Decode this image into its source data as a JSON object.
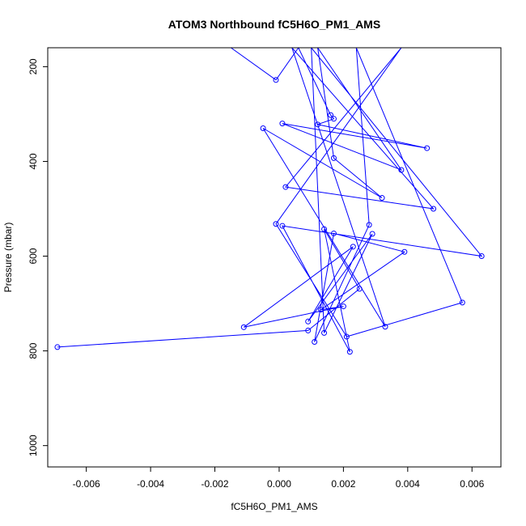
{
  "chart_data": {
    "type": "line",
    "title": "ATOM3 Northbound fC5H6O_PM1_AMS",
    "xlabel": "fC5H6O_PM1_AMS",
    "ylabel": "Pressure (mbar)",
    "xlim": [
      -0.0072,
      0.0069
    ],
    "ylim": [
      1045,
      160
    ],
    "y_reversed": true,
    "grid": false,
    "legend": "none",
    "x_ticks": [
      -0.006,
      -0.004,
      -0.002,
      0.0,
      0.002,
      0.004,
      0.006
    ],
    "x_tick_labels": [
      "-0.006",
      "-0.004",
      "-0.002",
      "0.000",
      "0.002",
      "0.004",
      "0.006"
    ],
    "y_ticks": [
      200,
      400,
      600,
      800,
      1000
    ],
    "y_tick_labels": [
      "200",
      "400",
      "600",
      "800",
      "1000"
    ],
    "series": [
      {
        "color": "#0000ff",
        "marker": "open-circle",
        "points": [
          [
            -0.0015,
            160
          ],
          [
            -0.0001,
            228
          ],
          [
            0.0006,
            160
          ],
          [
            0.0016,
            302
          ],
          [
            0.0017,
            310
          ],
          [
            0.0012,
            322
          ],
          [
            0.0046,
            372
          ],
          [
            0.0001,
            320
          ],
          [
            0.0038,
            418
          ],
          [
            0.0012,
            160
          ],
          [
            0.0017,
            393
          ],
          [
            0.0032,
            477
          ],
          [
            -0.0005,
            330
          ],
          [
            0.0033,
            749
          ],
          [
            0.0004,
            160
          ],
          [
            0.0048,
            500
          ],
          [
            0.0002,
            454
          ],
          [
            0.0038,
            160
          ],
          [
            -0.0001,
            532
          ],
          [
            0.0021,
            770
          ],
          [
            0.0057,
            698
          ],
          [
            0.0024,
            160
          ],
          [
            0.0028,
            534
          ],
          [
            0.0011,
            781
          ],
          [
            0.0017,
            552
          ],
          [
            0.0039,
            591
          ],
          [
            0.0013,
            713
          ],
          [
            0.002,
            706
          ],
          [
            -0.0011,
            750
          ],
          [
            0.0023,
            580
          ],
          [
            0.0009,
            738
          ],
          [
            0.0029,
            553
          ],
          [
            0.0014,
            762
          ],
          [
            0.001,
            160
          ],
          [
            0.0063,
            600
          ],
          [
            0.0001,
            536
          ],
          [
            0.0022,
            802
          ],
          [
            0.0014,
            543
          ],
          [
            0.0025,
            669
          ],
          [
            0.0009,
            757
          ],
          [
            -0.0069,
            792
          ]
        ]
      }
    ]
  }
}
